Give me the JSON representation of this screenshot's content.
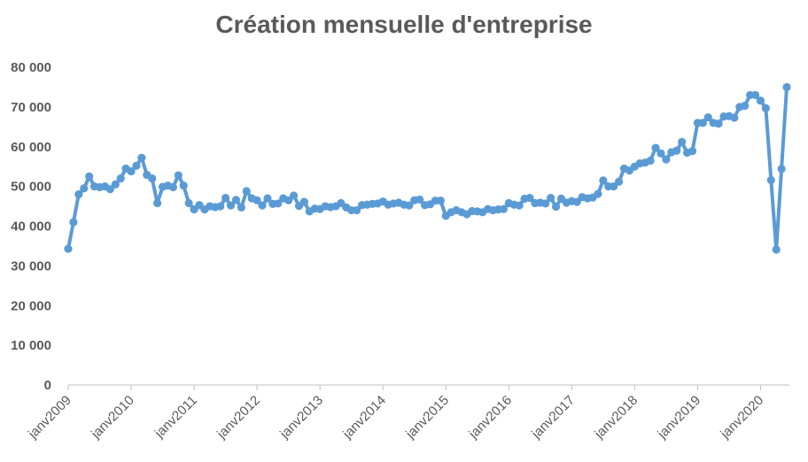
{
  "chart_data": {
    "type": "line",
    "title": "Création mensuelle d'entreprise",
    "xlabel": "",
    "ylabel": "",
    "ylim": [
      0,
      80000
    ],
    "grid": false,
    "legend": "none",
    "y_tick_labels": [
      "0",
      "10 000",
      "20 000",
      "30 000",
      "40 000",
      "50 000",
      "60 000",
      "70 000",
      "80 000"
    ],
    "x_tick_labels": [
      "janv2009",
      "janv2010",
      "janv2011",
      "janv2012",
      "janv2013",
      "janv2014",
      "janv2015",
      "janv2016",
      "janv2017",
      "janv2018",
      "janv2019",
      "janv2020"
    ],
    "series": [
      {
        "color": "#5B9BD5",
        "x": [
          "2009-01",
          "2009-02",
          "2009-03",
          "2009-04",
          "2009-05",
          "2009-06",
          "2009-07",
          "2009-08",
          "2009-09",
          "2009-10",
          "2009-11",
          "2009-12",
          "2010-01",
          "2010-02",
          "2010-03",
          "2010-04",
          "2010-05",
          "2010-06",
          "2010-07",
          "2010-08",
          "2010-09",
          "2010-10",
          "2010-11",
          "2010-12",
          "2011-01",
          "2011-02",
          "2011-03",
          "2011-04",
          "2011-05",
          "2011-06",
          "2011-07",
          "2011-08",
          "2011-09",
          "2011-10",
          "2011-11",
          "2011-12",
          "2012-01",
          "2012-02",
          "2012-03",
          "2012-04",
          "2012-05",
          "2012-06",
          "2012-07",
          "2012-08",
          "2012-09",
          "2012-10",
          "2012-11",
          "2012-12",
          "2013-01",
          "2013-02",
          "2013-03",
          "2013-04",
          "2013-05",
          "2013-06",
          "2013-07",
          "2013-08",
          "2013-09",
          "2013-10",
          "2013-11",
          "2013-12",
          "2014-01",
          "2014-02",
          "2014-03",
          "2014-04",
          "2014-05",
          "2014-06",
          "2014-07",
          "2014-08",
          "2014-09",
          "2014-10",
          "2014-11",
          "2014-12",
          "2015-01",
          "2015-02",
          "2015-03",
          "2015-04",
          "2015-05",
          "2015-06",
          "2015-07",
          "2015-08",
          "2015-09",
          "2015-10",
          "2015-11",
          "2015-12",
          "2016-01",
          "2016-02",
          "2016-03",
          "2016-04",
          "2016-05",
          "2016-06",
          "2016-07",
          "2016-08",
          "2016-09",
          "2016-10",
          "2016-11",
          "2016-12",
          "2017-01",
          "2017-02",
          "2017-03",
          "2017-04",
          "2017-05",
          "2017-06",
          "2017-07",
          "2017-08",
          "2017-09",
          "2017-10",
          "2017-11",
          "2017-12",
          "2018-01",
          "2018-02",
          "2018-03",
          "2018-04",
          "2018-05",
          "2018-06",
          "2018-07",
          "2018-08",
          "2018-09",
          "2018-10",
          "2018-11",
          "2018-12",
          "2019-01",
          "2019-02",
          "2019-03",
          "2019-04",
          "2019-05",
          "2019-06",
          "2019-07",
          "2019-08",
          "2019-09",
          "2019-10",
          "2019-11",
          "2019-12",
          "2020-01",
          "2020-02",
          "2020-03",
          "2020-04",
          "2020-05",
          "2020-06"
        ],
        "values": [
          34300,
          41000,
          48000,
          49500,
          52500,
          50000,
          49800,
          50000,
          49300,
          50500,
          52000,
          54500,
          53800,
          55200,
          57200,
          52900,
          52000,
          45800,
          49900,
          50200,
          49800,
          52800,
          50200,
          45800,
          44200,
          45300,
          44200,
          45000,
          44800,
          45000,
          47100,
          45200,
          46600,
          44700,
          48800,
          47000,
          46500,
          45200,
          47000,
          45600,
          45700,
          47000,
          46500,
          47700,
          45100,
          46100,
          43700,
          44400,
          44300,
          45000,
          44800,
          45000,
          45800,
          44700,
          44000,
          44000,
          45300,
          45400,
          45600,
          45700,
          46200,
          45400,
          45700,
          45900,
          45400,
          45200,
          46500,
          46700,
          45300,
          45500,
          46400,
          46400,
          42600,
          43500,
          44000,
          43500,
          43000,
          43800,
          43700,
          43500,
          44300,
          44000,
          44200,
          44300,
          45800,
          45400,
          45200,
          46900,
          47100,
          45800,
          45900,
          45700,
          47100,
          44900,
          46900,
          45900,
          46300,
          46100,
          47300,
          47000,
          47200,
          48100,
          51500,
          50000,
          50000,
          51200,
          54500,
          54000,
          55000,
          55800,
          56000,
          56500,
          59700,
          58300,
          56800,
          58600,
          59000,
          61200,
          58500,
          58900,
          66000,
          66000,
          67400,
          66000,
          65800,
          67600,
          67700,
          67300,
          70000,
          70300,
          73000,
          73000,
          71600,
          69700,
          51600,
          34100,
          54400,
          75000
        ]
      }
    ]
  }
}
